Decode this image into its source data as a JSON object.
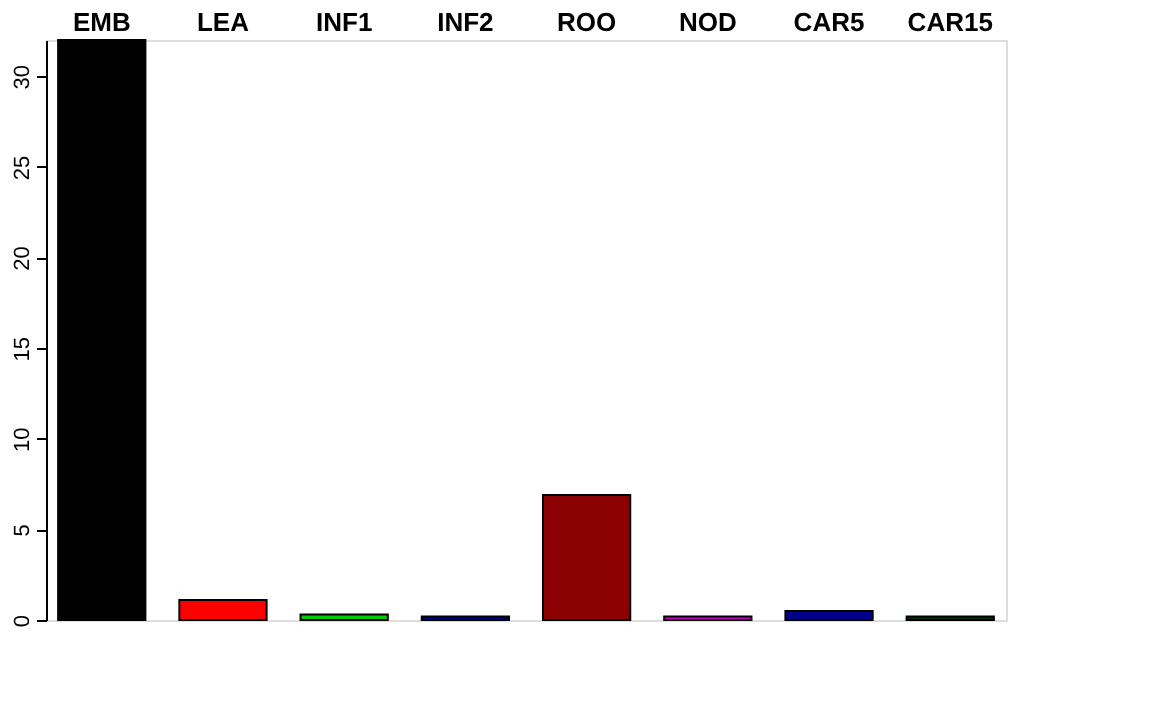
{
  "chart_data": {
    "type": "bar",
    "categories": [
      "EMB",
      "LEA",
      "INF1",
      "INF2",
      "ROO",
      "NOD",
      "CAR5",
      "CAR15"
    ],
    "values": [
      32.0,
      1.1,
      0.3,
      0.2,
      6.9,
      0.2,
      0.5,
      0.2
    ],
    "colors": [
      "#000000",
      "#ff0000",
      "#00cd00",
      "#000080",
      "#8b0000",
      "#cd00cd",
      "#00008b",
      "#003300"
    ],
    "ylim": [
      0,
      32
    ],
    "yticks": [
      0,
      5,
      10,
      15,
      20,
      25,
      30
    ],
    "grid": false
  }
}
